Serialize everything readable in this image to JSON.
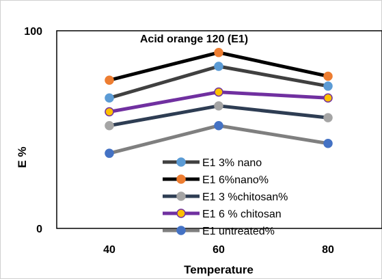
{
  "chart_data": {
    "type": "line",
    "title": "Acid orange 120 (E1)",
    "xlabel": "Temperature",
    "ylabel": "E %",
    "categories": [
      "40",
      "60",
      "80"
    ],
    "ylim": [
      0,
      100
    ],
    "y_ticks": [
      "0",
      "100"
    ],
    "grid": false,
    "legend_position": "bottom-center-inside",
    "series": [
      {
        "name": "E1 3% nano",
        "values": [
          66,
          82,
          72
        ],
        "line_color": "#404040",
        "marker_color": "#5b9bd5",
        "marker_edge": "#5b9bd5"
      },
      {
        "name": "E1 6%nano%",
        "values": [
          75,
          89,
          77
        ],
        "line_color": "#000000",
        "marker_color": "#ed7d31",
        "marker_edge": "#ed7d31"
      },
      {
        "name": "E1 3 %chitosan%",
        "values": [
          52,
          62,
          56
        ],
        "line_color": "#2e3d53",
        "marker_color": "#a5a5a5",
        "marker_edge": "#a5a5a5"
      },
      {
        "name": "E1 6 % chitosan",
        "values": [
          59,
          69,
          66
        ],
        "line_color": "#7030a0",
        "marker_color": "#ffc000",
        "marker_edge": "#7030a0"
      },
      {
        "name": "E1 untreated%",
        "values": [
          38,
          52,
          43
        ],
        "line_color": "#7f7f7f",
        "marker_color": "#4472c4",
        "marker_edge": "#4472c4"
      }
    ]
  }
}
